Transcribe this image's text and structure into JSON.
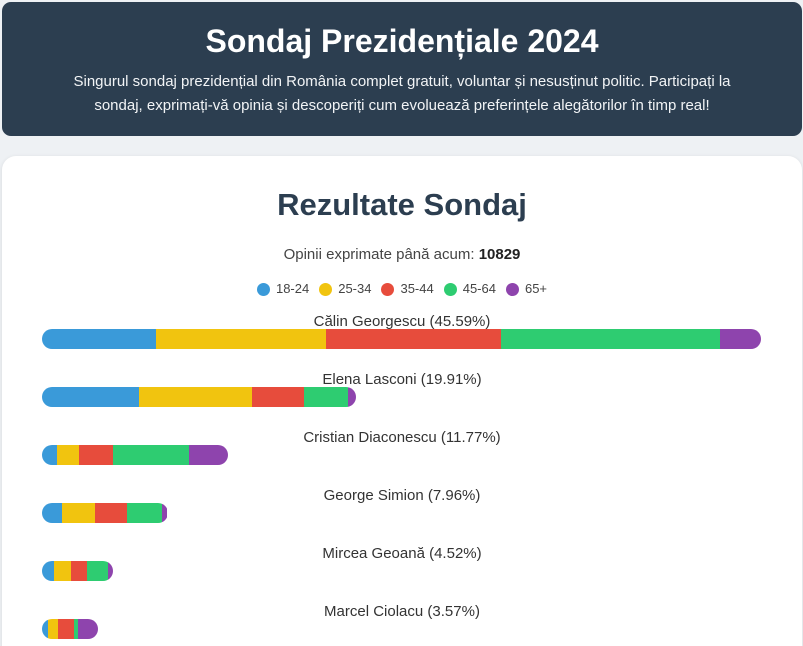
{
  "header": {
    "title": "Sondaj Prezidențiale 2024",
    "subtitle": "Singurul sondaj prezidențial din România complet gratuit, voluntar și nesusținut politic. Participați la sondaj, exprimați-vă opinia și descoperiți cum evoluează preferințele alegătorilor în timp real!"
  },
  "results": {
    "title": "Rezultate Sondaj",
    "count_label": "Opinii exprimate până acum:",
    "count_value": "10829"
  },
  "legend": [
    {
      "label": "18-24",
      "color": "#3a9ad9"
    },
    {
      "label": "25-34",
      "color": "#f1c40f"
    },
    {
      "label": "35-44",
      "color": "#e74c3c"
    },
    {
      "label": "45-64",
      "color": "#2ecc71"
    },
    {
      "label": "65+",
      "color": "#8e44ad"
    }
  ],
  "candidates": [
    {
      "label": "Călin Georgescu (45.59%)",
      "percent": 45.59,
      "segments": [
        0.158,
        0.237,
        0.243,
        0.305,
        0.057
      ]
    },
    {
      "label": "Elena Lasconi (19.91%)",
      "percent": 19.91,
      "segments": [
        0.31,
        0.36,
        0.165,
        0.14,
        0.025
      ]
    },
    {
      "label": "Cristian Diaconescu (11.77%)",
      "percent": 11.77,
      "segments": [
        0.08,
        0.12,
        0.18,
        0.41,
        0.21
      ]
    },
    {
      "label": "George Simion (7.96%)",
      "percent": 7.96,
      "segments": [
        0.16,
        0.26,
        0.26,
        0.28,
        0.04
      ]
    },
    {
      "label": "Mircea Geoană (4.52%)",
      "percent": 4.52,
      "segments": [
        0.17,
        0.24,
        0.22,
        0.3,
        0.07
      ]
    },
    {
      "label": "Marcel Ciolacu (3.57%)",
      "percent": 3.57,
      "segments": [
        0.1,
        0.18,
        0.28,
        0.08,
        0.36
      ]
    }
  ]
}
